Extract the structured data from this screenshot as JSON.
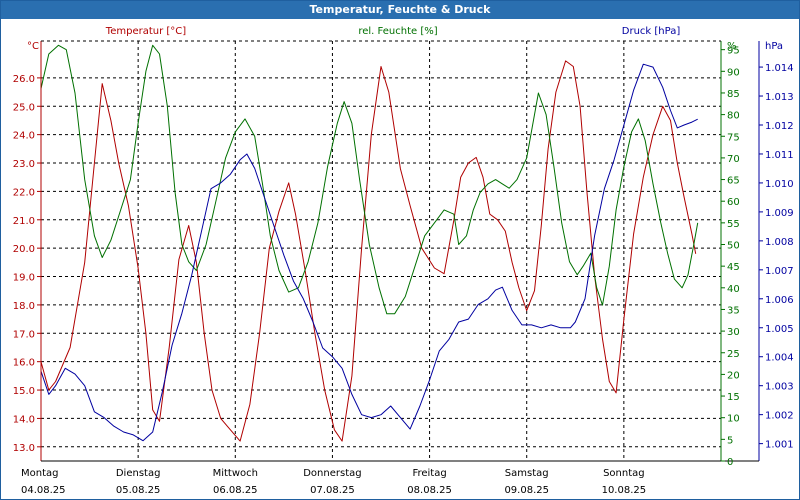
{
  "window": {
    "title": "Temperatur, Feuchte & Druck"
  },
  "colors": {
    "temperature": "#b00000",
    "humidity": "#007000",
    "pressure": "#0000a0",
    "grid": "#000000",
    "titlebar": "#2a6fb0"
  },
  "chart_data": {
    "type": "line",
    "title": "Temperatur, Feuchte & Druck",
    "grid": true,
    "x": {
      "labels": [
        {
          "day": "Montag",
          "date": "04.08.25"
        },
        {
          "day": "Dienstag",
          "date": "05.08.25"
        },
        {
          "day": "Mittwoch",
          "date": "06.08.25"
        },
        {
          "day": "Donnerstag",
          "date": "07.08.25"
        },
        {
          "day": "Freitag",
          "date": "08.08.25"
        },
        {
          "day": "Samstag",
          "date": "09.08.25"
        },
        {
          "day": "Sonntag",
          "date": "10.08.25"
        }
      ],
      "range": [
        0,
        7
      ]
    },
    "axes": {
      "temperature": {
        "unit": "°C",
        "ylim": [
          12.5,
          27.3
        ],
        "ticks": [
          "13.0",
          "14.0",
          "15.0",
          "16.0",
          "17.0",
          "18.0",
          "19.0",
          "20.0",
          "21.0",
          "22.0",
          "23.0",
          "24.0",
          "25.0",
          "26.0"
        ]
      },
      "humidity": {
        "unit": "%",
        "ylim": [
          0,
          97
        ],
        "ticks": [
          "0",
          "5",
          "10",
          "15",
          "20",
          "25",
          "30",
          "35",
          "40",
          "45",
          "50",
          "55",
          "60",
          "65",
          "70",
          "75",
          "80",
          "85",
          "90",
          "95"
        ]
      },
      "pressure": {
        "unit": "hPa",
        "ylim": [
          1000.4,
          1014.9
        ],
        "ticks": [
          "1.001",
          "1.002",
          "1.003",
          "1.004",
          "1.005",
          "1.006",
          "1.007",
          "1.008",
          "1.009",
          "1.010",
          "1.011",
          "1.012",
          "1.013",
          "1.014"
        ]
      }
    },
    "series": [
      {
        "name": "Temperatur [°C]",
        "axis": "temperature",
        "points": [
          [
            0,
            16.0
          ],
          [
            0.08,
            15.0
          ],
          [
            0.15,
            15.3
          ],
          [
            0.3,
            16.5
          ],
          [
            0.45,
            19.5
          ],
          [
            0.55,
            23.0
          ],
          [
            0.63,
            25.8
          ],
          [
            0.72,
            24.5
          ],
          [
            0.8,
            23.0
          ],
          [
            0.9,
            21.5
          ],
          [
            1.0,
            19.3
          ],
          [
            1.08,
            17.0
          ],
          [
            1.15,
            14.3
          ],
          [
            1.22,
            13.9
          ],
          [
            1.32,
            16.5
          ],
          [
            1.42,
            19.6
          ],
          [
            1.52,
            20.8
          ],
          [
            1.6,
            19.5
          ],
          [
            1.68,
            17.0
          ],
          [
            1.76,
            15.0
          ],
          [
            1.85,
            14.0
          ],
          [
            1.95,
            13.6
          ],
          [
            2.05,
            13.2
          ],
          [
            2.15,
            14.5
          ],
          [
            2.25,
            17.0
          ],
          [
            2.35,
            20.0
          ],
          [
            2.45,
            21.3
          ],
          [
            2.55,
            22.3
          ],
          [
            2.62,
            21.2
          ],
          [
            2.72,
            19.2
          ],
          [
            2.82,
            17.0
          ],
          [
            2.92,
            15.0
          ],
          [
            3.02,
            13.6
          ],
          [
            3.1,
            13.2
          ],
          [
            3.2,
            15.5
          ],
          [
            3.3,
            20.0
          ],
          [
            3.4,
            24.0
          ],
          [
            3.5,
            26.4
          ],
          [
            3.58,
            25.5
          ],
          [
            3.7,
            22.8
          ],
          [
            3.8,
            21.5
          ],
          [
            3.92,
            20.0
          ],
          [
            4.05,
            19.3
          ],
          [
            4.15,
            19.1
          ],
          [
            4.25,
            21.0
          ],
          [
            4.32,
            22.5
          ],
          [
            4.4,
            23.0
          ],
          [
            4.48,
            23.2
          ],
          [
            4.55,
            22.5
          ],
          [
            4.62,
            21.2
          ],
          [
            4.7,
            21.0
          ],
          [
            4.78,
            20.6
          ],
          [
            4.85,
            19.5
          ],
          [
            4.92,
            18.6
          ],
          [
            5.0,
            17.8
          ],
          [
            5.08,
            18.5
          ],
          [
            5.15,
            20.8
          ],
          [
            5.22,
            23.5
          ],
          [
            5.3,
            25.5
          ],
          [
            5.4,
            26.6
          ],
          [
            5.48,
            26.4
          ],
          [
            5.55,
            25.0
          ],
          [
            5.62,
            22.0
          ],
          [
            5.7,
            19.0
          ],
          [
            5.78,
            16.8
          ],
          [
            5.85,
            15.3
          ],
          [
            5.92,
            14.9
          ],
          [
            6.0,
            17.5
          ],
          [
            6.1,
            20.5
          ],
          [
            6.2,
            22.5
          ],
          [
            6.3,
            24.0
          ],
          [
            6.4,
            25.0
          ],
          [
            6.48,
            24.5
          ],
          [
            6.55,
            23.0
          ],
          [
            6.62,
            21.8
          ],
          [
            6.7,
            20.5
          ],
          [
            6.74,
            19.8
          ]
        ]
      },
      {
        "name": "rel. Feuchte [%]",
        "axis": "humidity",
        "points": [
          [
            0,
            86
          ],
          [
            0.08,
            94
          ],
          [
            0.18,
            96
          ],
          [
            0.26,
            95
          ],
          [
            0.35,
            85
          ],
          [
            0.45,
            65
          ],
          [
            0.55,
            52
          ],
          [
            0.63,
            47
          ],
          [
            0.72,
            51
          ],
          [
            0.82,
            58
          ],
          [
            0.92,
            65
          ],
          [
            1.0,
            78
          ],
          [
            1.08,
            90
          ],
          [
            1.15,
            96
          ],
          [
            1.22,
            94
          ],
          [
            1.3,
            82
          ],
          [
            1.38,
            62
          ],
          [
            1.45,
            50
          ],
          [
            1.52,
            46
          ],
          [
            1.6,
            44
          ],
          [
            1.7,
            50
          ],
          [
            1.8,
            60
          ],
          [
            1.9,
            70
          ],
          [
            2.0,
            76
          ],
          [
            2.1,
            79
          ],
          [
            2.2,
            75
          ],
          [
            2.28,
            64
          ],
          [
            2.36,
            52
          ],
          [
            2.45,
            44
          ],
          [
            2.55,
            39
          ],
          [
            2.65,
            40
          ],
          [
            2.75,
            46
          ],
          [
            2.85,
            55
          ],
          [
            2.95,
            68
          ],
          [
            3.05,
            78
          ],
          [
            3.12,
            83
          ],
          [
            3.2,
            78
          ],
          [
            3.28,
            65
          ],
          [
            3.38,
            50
          ],
          [
            3.48,
            40
          ],
          [
            3.56,
            34
          ],
          [
            3.64,
            34
          ],
          [
            3.75,
            38
          ],
          [
            3.85,
            45
          ],
          [
            3.95,
            52
          ],
          [
            4.05,
            55
          ],
          [
            4.15,
            58
          ],
          [
            4.25,
            57
          ],
          [
            4.3,
            50
          ],
          [
            4.38,
            52
          ],
          [
            4.45,
            58
          ],
          [
            4.52,
            62
          ],
          [
            4.6,
            64
          ],
          [
            4.68,
            65
          ],
          [
            4.75,
            64
          ],
          [
            4.82,
            63
          ],
          [
            4.9,
            65
          ],
          [
            5.0,
            70
          ],
          [
            5.08,
            80
          ],
          [
            5.12,
            85
          ],
          [
            5.2,
            80
          ],
          [
            5.28,
            68
          ],
          [
            5.36,
            55
          ],
          [
            5.44,
            46
          ],
          [
            5.52,
            43
          ],
          [
            5.58,
            45
          ],
          [
            5.66,
            48
          ],
          [
            5.72,
            40
          ],
          [
            5.78,
            36
          ],
          [
            5.85,
            45
          ],
          [
            5.92,
            58
          ],
          [
            6.0,
            68
          ],
          [
            6.08,
            76
          ],
          [
            6.15,
            79
          ],
          [
            6.22,
            74
          ],
          [
            6.3,
            64
          ],
          [
            6.38,
            55
          ],
          [
            6.45,
            48
          ],
          [
            6.52,
            42
          ],
          [
            6.6,
            40
          ],
          [
            6.66,
            43
          ],
          [
            6.72,
            50
          ],
          [
            6.76,
            55
          ]
        ]
      },
      {
        "name": "Druck [hPa]",
        "axis": "pressure",
        "points": [
          [
            0,
            1003.5
          ],
          [
            0.08,
            1002.7
          ],
          [
            0.15,
            1003.0
          ],
          [
            0.25,
            1003.6
          ],
          [
            0.35,
            1003.4
          ],
          [
            0.45,
            1003.0
          ],
          [
            0.55,
            1002.1
          ],
          [
            0.65,
            1001.9
          ],
          [
            0.75,
            1001.6
          ],
          [
            0.85,
            1001.4
          ],
          [
            0.95,
            1001.3
          ],
          [
            1.05,
            1001.1
          ],
          [
            1.15,
            1001.4
          ],
          [
            1.25,
            1002.8
          ],
          [
            1.35,
            1004.4
          ],
          [
            1.45,
            1005.5
          ],
          [
            1.55,
            1006.8
          ],
          [
            1.65,
            1008.3
          ],
          [
            1.75,
            1009.8
          ],
          [
            1.85,
            1010.0
          ],
          [
            1.95,
            1010.3
          ],
          [
            2.05,
            1010.8
          ],
          [
            2.12,
            1011.0
          ],
          [
            2.2,
            1010.5
          ],
          [
            2.3,
            1009.5
          ],
          [
            2.4,
            1008.5
          ],
          [
            2.5,
            1007.5
          ],
          [
            2.6,
            1006.6
          ],
          [
            2.7,
            1006.0
          ],
          [
            2.8,
            1005.2
          ],
          [
            2.9,
            1004.3
          ],
          [
            3.0,
            1004.0
          ],
          [
            3.1,
            1003.6
          ],
          [
            3.2,
            1002.7
          ],
          [
            3.3,
            1002.0
          ],
          [
            3.4,
            1001.9
          ],
          [
            3.5,
            1002.0
          ],
          [
            3.6,
            1002.3
          ],
          [
            3.7,
            1001.9
          ],
          [
            3.8,
            1001.5
          ],
          [
            3.9,
            1002.3
          ],
          [
            4.0,
            1003.2
          ],
          [
            4.1,
            1004.2
          ],
          [
            4.2,
            1004.6
          ],
          [
            4.3,
            1005.2
          ],
          [
            4.4,
            1005.3
          ],
          [
            4.5,
            1005.8
          ],
          [
            4.6,
            1006.0
          ],
          [
            4.68,
            1006.3
          ],
          [
            4.75,
            1006.4
          ],
          [
            4.85,
            1005.6
          ],
          [
            4.95,
            1005.1
          ],
          [
            5.05,
            1005.1
          ],
          [
            5.15,
            1005.0
          ],
          [
            5.25,
            1005.1
          ],
          [
            5.35,
            1005.0
          ],
          [
            5.45,
            1005.0
          ],
          [
            5.5,
            1005.2
          ],
          [
            5.6,
            1006.0
          ],
          [
            5.7,
            1008.2
          ],
          [
            5.8,
            1009.8
          ],
          [
            5.9,
            1010.8
          ],
          [
            6.0,
            1012.0
          ],
          [
            6.1,
            1013.2
          ],
          [
            6.2,
            1014.1
          ],
          [
            6.3,
            1014.0
          ],
          [
            6.4,
            1013.3
          ],
          [
            6.48,
            1012.5
          ],
          [
            6.55,
            1011.9
          ],
          [
            6.62,
            1012.0
          ],
          [
            6.7,
            1012.1
          ],
          [
            6.76,
            1012.2
          ]
        ]
      }
    ]
  }
}
